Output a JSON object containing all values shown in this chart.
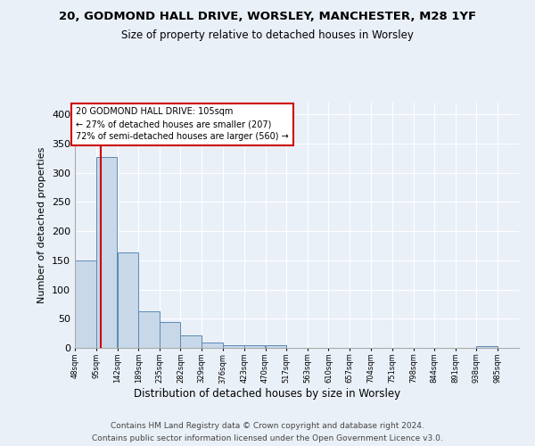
{
  "title1": "20, GODMOND HALL DRIVE, WORSLEY, MANCHESTER, M28 1YF",
  "title2": "Size of property relative to detached houses in Worsley",
  "xlabel": "Distribution of detached houses by size in Worsley",
  "ylabel": "Number of detached properties",
  "bins": [
    48,
    95,
    142,
    189,
    235,
    282,
    329,
    376,
    423,
    470,
    517,
    563,
    610,
    657,
    704,
    751,
    798,
    844,
    891,
    938,
    985
  ],
  "counts": [
    150,
    327,
    163,
    63,
    44,
    21,
    9,
    4,
    4,
    4,
    0,
    0,
    0,
    0,
    0,
    0,
    0,
    0,
    0,
    3,
    0
  ],
  "subject_size": 105,
  "subject_bin_index": 1,
  "bar_color": "#c8d8e8",
  "bar_edge_color": "#5a8ab5",
  "subject_line_color": "#cc0000",
  "annotation_text": "20 GODMOND HALL DRIVE: 105sqm\n← 27% of detached houses are smaller (207)\n72% of semi-detached houses are larger (560) →",
  "annotation_box_color": "white",
  "annotation_box_edge": "#cc0000",
  "footer1": "Contains HM Land Registry data © Crown copyright and database right 2024.",
  "footer2": "Contains public sector information licensed under the Open Government Licence v3.0.",
  "ylim": [
    0,
    420
  ],
  "background_color": "#eaf0f8",
  "plot_bg_color": "#eaf0f8"
}
